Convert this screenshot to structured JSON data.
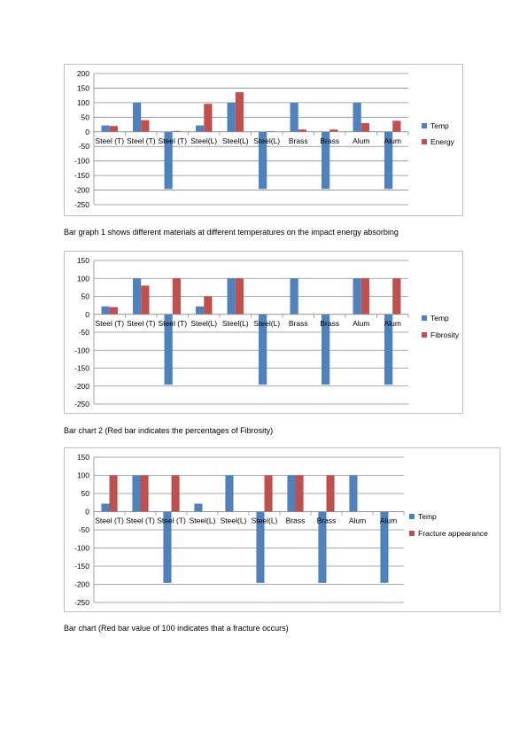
{
  "page": {
    "captions": [
      "Bar graph 1 shows different materials at different temperatures on the impact energy absorbing",
      "Bar chart 2 (Red bar indicates the percentages of Fibrosity)",
      "Bar chart (Red bar value of 100 indicates that a fracture occurs)"
    ]
  },
  "chart_data": [
    {
      "type": "bar",
      "categories": [
        "Steel (T)",
        "Steel (T)",
        "Steel (T)",
        "Steel(L)",
        "Steel(L)",
        "Steel(L)",
        "Brass",
        "Brass",
        "Alum",
        "Alum"
      ],
      "series": [
        {
          "name": "Temp",
          "color": "#4f81bd",
          "values": [
            22,
            100,
            -196,
            22,
            100,
            -196,
            100,
            -196,
            100,
            -196
          ]
        },
        {
          "name": "Energy",
          "color": "#c0504d",
          "values": [
            20,
            40,
            3,
            96,
            136,
            2,
            8,
            8,
            30,
            38
          ]
        }
      ],
      "ylim": [
        -250,
        200
      ],
      "yticks": [
        200,
        150,
        100,
        50,
        0,
        -50,
        -100,
        -150,
        -200,
        -250
      ],
      "grid": true,
      "legend": "right"
    },
    {
      "type": "bar",
      "categories": [
        "Steel (T)",
        "Steel (T)",
        "Steel (T)",
        "Steel(L)",
        "Steel(L)",
        "Steel(L)",
        "Brass",
        "Brass",
        "Alum",
        "Alum"
      ],
      "series": [
        {
          "name": "Temp",
          "color": "#4f81bd",
          "values": [
            22,
            100,
            -196,
            22,
            100,
            -196,
            100,
            -196,
            100,
            -196
          ]
        },
        {
          "name": "Fibrosity",
          "color": "#c0504d",
          "values": [
            20,
            80,
            100,
            50,
            100,
            0,
            0,
            0,
            100,
            100
          ]
        }
      ],
      "ylim": [
        -250,
        150
      ],
      "yticks": [
        150,
        100,
        50,
        0,
        -50,
        -100,
        -150,
        -200,
        -250
      ],
      "grid": true,
      "legend": "right"
    },
    {
      "type": "bar",
      "categories": [
        "Steel (T)",
        "Steel (T)",
        "Steel (T)",
        "Steel(L)",
        "Steel(L)",
        "Steel(L)",
        "Brass",
        "Brass",
        "Alum",
        "Alum"
      ],
      "series": [
        {
          "name": "Temp",
          "color": "#4f81bd",
          "values": [
            22,
            100,
            -196,
            22,
            100,
            -196,
            100,
            -196,
            100,
            -196
          ]
        },
        {
          "name": "Fracture appearance",
          "color": "#c0504d",
          "values": [
            100,
            100,
            100,
            0,
            0,
            100,
            100,
            100,
            0,
            0
          ]
        }
      ],
      "ylim": [
        -250,
        150
      ],
      "yticks": [
        150,
        100,
        50,
        0,
        -50,
        -100,
        -150,
        -200,
        -250
      ],
      "grid": true,
      "legend": "right"
    }
  ]
}
